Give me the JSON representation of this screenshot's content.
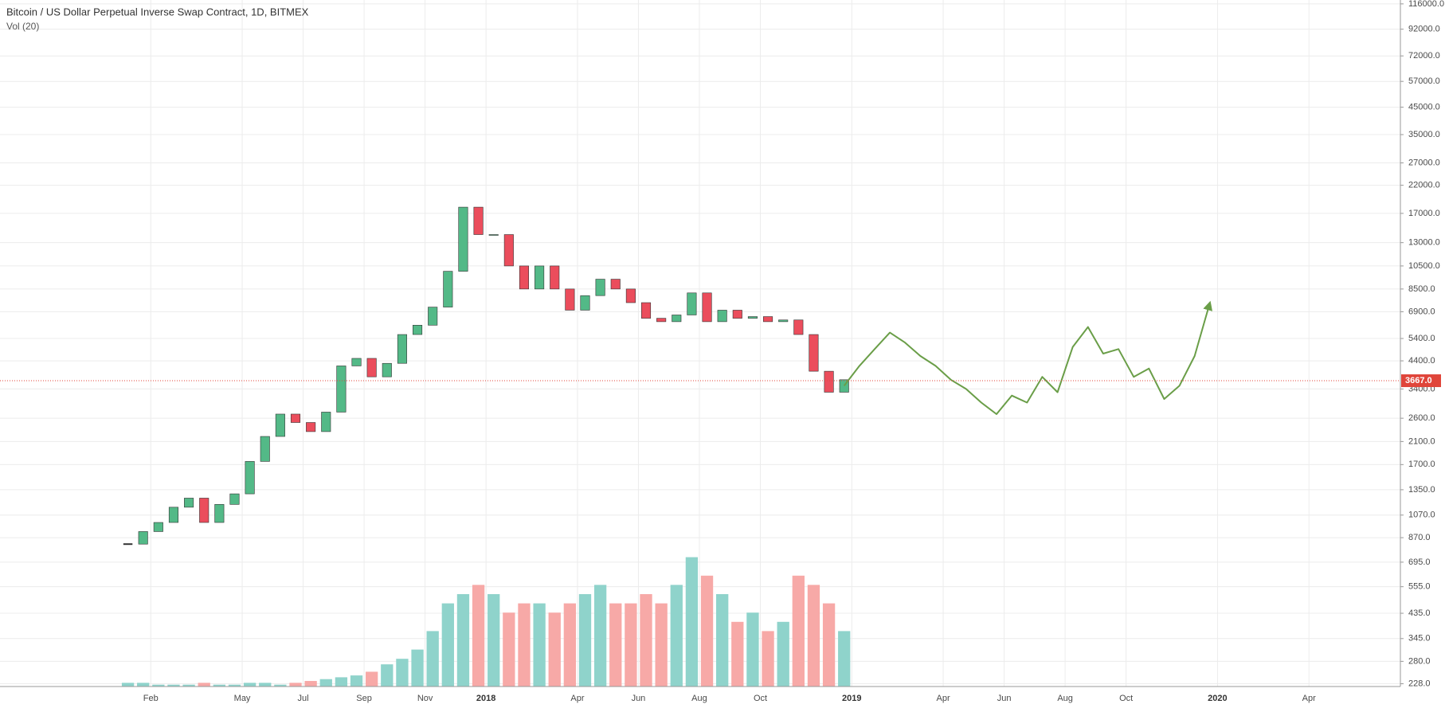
{
  "chart_data": {
    "type": "candlestick",
    "title": "Bitcoin / US Dollar Perpetual Inverse Swap Contract, 1D, BITMEX",
    "subtitle": "Vol (20)",
    "log_scale": true,
    "grid": true,
    "categories": [
      null,
      null,
      "Feb",
      null,
      null,
      null,
      null,
      null,
      "May",
      null,
      null,
      null,
      "Jul",
      null,
      null,
      null,
      "Sep",
      null,
      null,
      null,
      "Nov",
      null,
      null,
      null,
      "2018",
      null,
      null,
      null,
      null,
      null,
      "Apr",
      null,
      null,
      null,
      "Jun",
      null,
      null,
      null,
      "Aug",
      null,
      null,
      null,
      "Oct",
      null,
      null,
      null,
      null,
      null,
      "2019",
      null,
      null,
      null,
      null,
      null,
      "Apr",
      null,
      null,
      null,
      "Jun",
      null,
      null,
      null,
      "Aug",
      null,
      null,
      null,
      "Oct",
      null,
      null,
      null,
      null,
      null,
      "2020",
      null,
      null,
      null,
      null,
      null,
      "Apr",
      null,
      null,
      null,
      null,
      null
    ],
    "close": [
      820,
      920,
      1000,
      1150,
      1250,
      1000,
      1180,
      1300,
      1750,
      2200,
      2700,
      2500,
      2300,
      2750,
      4200,
      4500,
      3800,
      4300,
      5600,
      6100,
      7200,
      10000,
      18000,
      14000,
      14000,
      10500,
      8500,
      10500,
      8500,
      7000,
      8000,
      9300,
      8500,
      7500,
      6500,
      6300,
      6700,
      8200,
      6300,
      7000,
      6500,
      6600,
      6300,
      6400,
      5600,
      4000,
      3300,
      3700,
      null,
      null,
      null,
      null,
      null,
      null,
      null,
      null,
      null,
      null,
      null,
      null,
      null,
      null,
      null,
      null,
      null,
      null,
      null,
      null,
      null,
      null,
      null,
      null,
      null,
      null,
      null,
      null,
      null,
      null,
      null,
      null,
      null,
      null,
      null,
      null
    ],
    "up_color": "#53b987",
    "down_color": "#eb4d5c",
    "forecast": {
      "color": "#6a9e48",
      "values": [
        null,
        null,
        null,
        null,
        null,
        null,
        null,
        null,
        null,
        null,
        null,
        null,
        null,
        null,
        null,
        null,
        null,
        null,
        null,
        null,
        null,
        null,
        null,
        null,
        null,
        null,
        null,
        null,
        null,
        null,
        null,
        null,
        null,
        null,
        null,
        null,
        null,
        null,
        null,
        null,
        null,
        null,
        null,
        null,
        null,
        null,
        null,
        3500,
        4200,
        4900,
        5700,
        5200,
        4600,
        4200,
        3700,
        3400,
        3000,
        2700,
        3200,
        3000,
        3800,
        3300,
        5000,
        6000,
        4700,
        4900,
        3800,
        4100,
        3100,
        3500,
        4600,
        7500,
        null,
        null,
        null,
        null,
        null,
        null,
        null,
        null,
        null,
        null,
        null,
        null
      ]
    },
    "volume": {
      "ylim": [
        0,
        100
      ],
      "up_color": "#8fd3cb",
      "down_color": "#f7a9a7",
      "values": [
        2,
        2,
        1,
        1,
        1,
        2,
        1,
        1,
        2,
        2,
        1,
        2,
        3,
        4,
        5,
        6,
        8,
        12,
        15,
        20,
        30,
        45,
        50,
        55,
        50,
        40,
        45,
        45,
        40,
        45,
        50,
        55,
        45,
        45,
        50,
        45,
        55,
        70,
        60,
        50,
        35,
        40,
        30,
        35,
        60,
        55,
        45,
        30,
        null,
        null,
        null,
        null,
        null,
        null,
        null,
        null,
        null,
        null,
        null,
        null,
        null,
        null,
        null,
        null,
        null,
        null,
        null,
        null,
        null,
        null,
        null,
        null,
        null,
        null,
        null,
        null,
        null,
        null,
        null,
        null,
        null,
        null,
        null,
        null
      ]
    },
    "last_price": {
      "value": 3667,
      "label": "3667.0",
      "color": "#e0453a"
    },
    "ylim": [
      222.3,
      120200
    ],
    "yticks": [
      {
        "value": 116000,
        "label": "116000.0"
      },
      {
        "value": 92000,
        "label": "92000.0"
      },
      {
        "value": 72000,
        "label": "72000.0"
      },
      {
        "value": 57000,
        "label": "57000.0"
      },
      {
        "value": 45000,
        "label": "45000.0"
      },
      {
        "value": 35000,
        "label": "35000.0"
      },
      {
        "value": 27000,
        "label": "27000.0"
      },
      {
        "value": 22000,
        "label": "22000.0"
      },
      {
        "value": 17000,
        "label": "17000.0"
      },
      {
        "value": 13000,
        "label": "13000.0"
      },
      {
        "value": 10500,
        "label": "10500.0"
      },
      {
        "value": 8500,
        "label": "8500.0"
      },
      {
        "value": 6900,
        "label": "6900.0"
      },
      {
        "value": 5400,
        "label": "5400.0"
      },
      {
        "value": 4400,
        "label": "4400.0"
      },
      {
        "value": 3400,
        "label": "3400.0"
      },
      {
        "value": 2600,
        "label": "2600.0"
      },
      {
        "value": 2100,
        "label": "2100.0"
      },
      {
        "value": 1700,
        "label": "1700.0"
      },
      {
        "value": 1350,
        "label": "1350.0"
      },
      {
        "value": 1070,
        "label": "1070.0"
      },
      {
        "value": 870,
        "label": "870.0"
      },
      {
        "value": 695,
        "label": "695.0"
      },
      {
        "value": 555,
        "label": "555.0"
      },
      {
        "value": 435,
        "label": "435.0"
      },
      {
        "value": 345,
        "label": "345.0"
      },
      {
        "value": 280,
        "label": "280.0"
      },
      {
        "value": 228,
        "label": "228.0"
      }
    ]
  }
}
